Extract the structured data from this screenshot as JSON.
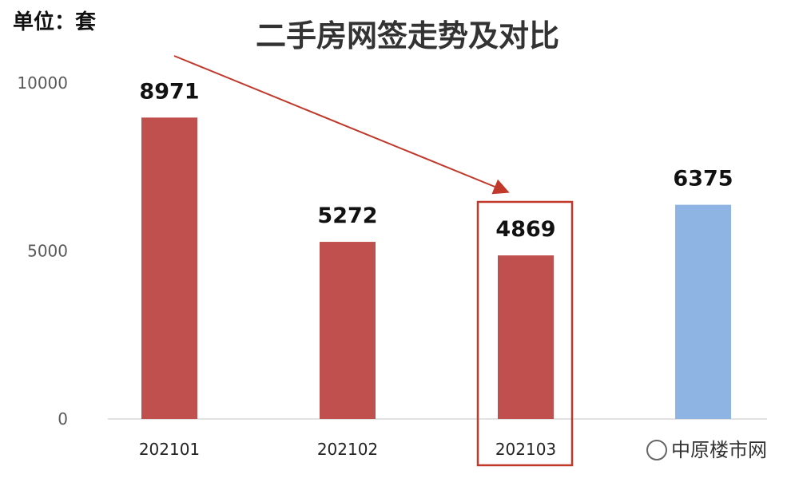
{
  "header": {
    "unit": "单位：套"
  },
  "watermark": {
    "text": "中原楼市网"
  },
  "chart_data": {
    "type": "bar",
    "title": "二手房网签走势及对比",
    "categories": [
      "202101",
      "202102",
      "202103",
      ""
    ],
    "values": [
      8971,
      5272,
      4869,
      6375
    ],
    "bar_colors": [
      "#c0504d",
      "#c0504d",
      "#c0504d",
      "#8db4e2"
    ],
    "data_labels": [
      "8971",
      "5272",
      "4869",
      "6375"
    ],
    "ylim": [
      0,
      10000
    ],
    "yticks": [
      0,
      5000,
      10000
    ],
    "ytick_labels": [
      "0",
      "5000",
      "10000"
    ],
    "highlight_category": "202103",
    "highlight_color": "#c0392b",
    "arrow": {
      "from_category": "202101",
      "to_category": "202103",
      "color": "#c0392b"
    },
    "grid": false,
    "legend": "none"
  }
}
